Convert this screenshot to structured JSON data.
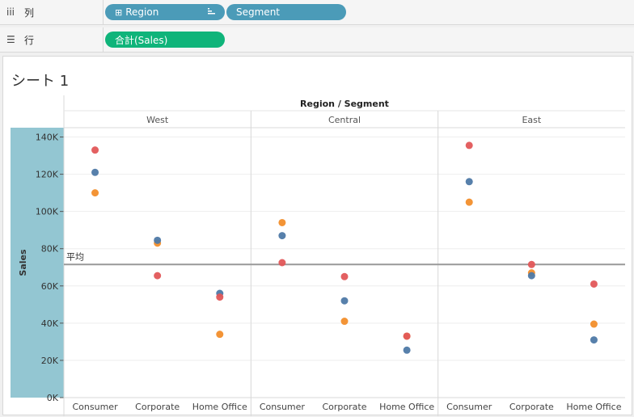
{
  "shelves": {
    "columns": {
      "label": "列",
      "pills": [
        {
          "prefix": "⊞",
          "label": "Region",
          "has_sort_icon": true
        },
        {
          "label": "Segment"
        }
      ]
    },
    "rows": {
      "label": "行",
      "pills": [
        {
          "label": "合計(Sales)"
        }
      ]
    }
  },
  "sheet": {
    "title": "シート 1"
  },
  "chart_data": {
    "type": "scatter",
    "title": "Region / Segment",
    "ylabel": "Sales",
    "ylim": [
      0,
      145000
    ],
    "yticks": [
      0,
      20000,
      40000,
      60000,
      80000,
      100000,
      120000,
      140000
    ],
    "ytick_labels": [
      "0K",
      "20K",
      "40K",
      "60K",
      "80K",
      "100K",
      "120K",
      "140K"
    ],
    "regions": [
      "West",
      "Central",
      "East"
    ],
    "segments": [
      "Consumer",
      "Corporate",
      "Home Office"
    ],
    "reference_line": {
      "label": "平均",
      "value": 71500
    },
    "colors": {
      "orange": "#f28e2b",
      "blue": "#4e79a7",
      "red": "#e15759"
    },
    "series": [
      {
        "color": "#f28e2b",
        "values": [
          [
            110000,
            83000,
            34000
          ],
          [
            94000,
            41000,
            33000
          ],
          [
            105000,
            67000,
            39500
          ]
        ]
      },
      {
        "color": "#4e79a7",
        "values": [
          [
            121000,
            84500,
            56000
          ],
          [
            87000,
            52000,
            25500
          ],
          [
            116000,
            65500,
            31000
          ]
        ]
      },
      {
        "color": "#e15759",
        "values": [
          [
            133000,
            65500,
            54000
          ],
          [
            72500,
            65000,
            33000
          ],
          [
            135500,
            71500,
            61000
          ]
        ]
      }
    ]
  }
}
